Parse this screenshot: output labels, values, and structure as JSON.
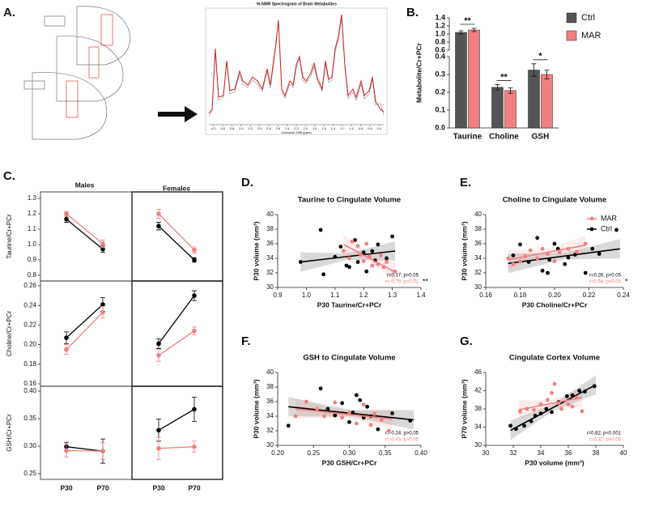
{
  "chart_data": [
    {
      "type": "spectrum",
      "panel": "A.",
      "title": "¹H-NMR Spectrogram of Brain Metabolites",
      "xlabel": "Chemical Shift (ppm)",
      "xlim": [
        4.1,
        0.3
      ],
      "xticks": [
        {
          "value": 4,
          "label": "4.0"
        },
        3.8,
        3.6,
        3.4,
        3.2,
        {
          "value": 3,
          "label": "3.0"
        },
        2.8,
        2.6,
        2.4,
        2.2,
        {
          "value": 2,
          "label": "2.0"
        },
        1.8,
        1.6,
        1.4,
        1.2,
        {
          "value": 1,
          "label": "1.0"
        },
        0.8,
        0.6,
        0.4
      ]
    },
    {
      "type": "bar",
      "panel": "B.",
      "ylabel": "Metabolite/Cr+PCr",
      "categories": [
        "Taurine",
        "Choline",
        "GSH"
      ],
      "series": [
        {
          "name": "Ctrl",
          "color": "#555555",
          "values": [
            1.04,
            0.228,
            0.325
          ],
          "errors": [
            0.04,
            0.015,
            0.035
          ]
        },
        {
          "name": "MAR",
          "color": "#f08080",
          "values": [
            1.1,
            0.21,
            0.3
          ],
          "errors": [
            0.04,
            0.015,
            0.025
          ]
        }
      ],
      "annotations": [
        "**",
        "**",
        "*"
      ],
      "ylim": [
        0,
        1.4
      ],
      "ybreak": [
        0.4,
        0.6
      ],
      "yticks": [
        {
          "value": 0,
          "label": "0.0"
        },
        0.1,
        0.2,
        0.3,
        0.4,
        0.6,
        0.8,
        {
          "value": 1,
          "label": "1.0"
        },
        1.2,
        1.4
      ]
    },
    {
      "type": "interaction",
      "panel": "C.",
      "groups": [
        "Males",
        "Females"
      ],
      "ylabel": "Taurine/Cr+PCr",
      "ylim": [
        0.8,
        1.3
      ],
      "yticks": [
        0.8,
        0.9,
        {
          "value": 1,
          "label": "1.0"
        },
        1.1,
        1.2,
        1.3
      ],
      "series": [
        {
          "color": "#000000",
          "values": [
            [
              1.165,
              0.97
            ],
            [
              1.12,
              0.9
            ]
          ],
          "errors": [
            [
              0.02,
              0.02
            ],
            [
              0.025,
              0.015
            ]
          ]
        },
        {
          "color": "#f08080",
          "values": [
            [
              1.2,
              1.005
            ],
            [
              1.2,
              0.965
            ]
          ],
          "errors": [
            [
              0.015,
              0.025
            ],
            [
              0.03,
              0.02
            ]
          ]
        }
      ]
    },
    {
      "type": "interaction",
      "ylabel": "Choline/Cr+PCr",
      "ylim": [
        0.16,
        0.26
      ],
      "yticks": [
        0.16,
        0.18,
        {
          "value": 0.2,
          "label": "0.20"
        },
        0.22,
        0.24,
        0.26
      ],
      "series": [
        {
          "color": "#000000",
          "values": [
            [
              0.207,
              0.241
            ],
            [
              0.201,
              0.25
            ]
          ],
          "errors": [
            [
              0.006,
              0.007
            ],
            [
              0.005,
              0.005
            ]
          ]
        },
        {
          "color": "#f08080",
          "values": [
            [
              0.195,
              0.233
            ],
            [
              0.189,
              0.214
            ]
          ],
          "errors": [
            [
              0.005,
              0.006
            ],
            [
              0.006,
              0.004
            ]
          ]
        }
      ]
    },
    {
      "type": "interaction",
      "ylabel": "GSH/Cr+PCr",
      "categories": [
        "P30",
        "P70"
      ],
      "ylim": [
        0.25,
        0.4
      ],
      "yticks": [
        0.25,
        {
          "value": 0.3,
          "label": "0.30"
        },
        0.35,
        {
          "value": 0.4,
          "label": "0.40"
        }
      ],
      "series": [
        {
          "color": "#000000",
          "values": [
            [
              0.299,
              0.291
            ],
            [
              0.329,
              0.367
            ]
          ],
          "errors": [
            [
              0.008,
              0.022
            ],
            [
              0.02,
              0.022
            ]
          ]
        },
        {
          "color": "#f08080",
          "values": [
            [
              0.292,
              0.291
            ],
            [
              0.296,
              0.299
            ]
          ],
          "errors": [
            [
              0.012,
              0.015
            ],
            [
              0.02,
              0.01
            ]
          ]
        }
      ]
    },
    {
      "type": "scatter",
      "panel": "D.",
      "title": "Taurine to Cingulate Volume",
      "xlabel": "P30 Taurine/Cr+PCr",
      "ylabel": "P30 volume (mm³)",
      "xlim": [
        0.9,
        1.4
      ],
      "xticks": [
        0.9,
        {
          "value": 1,
          "label": "1.0"
        },
        1.1,
        1.2,
        1.3,
        1.4
      ],
      "ylim": [
        30,
        40
      ],
      "yticks": [
        30,
        32,
        34,
        36,
        38,
        40
      ],
      "annotation": "**",
      "series": [
        {
          "color": "#000000",
          "stat": "r=0.17; p>0.05",
          "x": [
            0.98,
            1.05,
            1.06,
            1.1,
            1.12,
            1.14,
            1.15,
            1.17,
            1.18,
            1.2,
            1.21,
            1.23,
            1.24,
            1.25,
            1.28,
            1.3
          ],
          "y": [
            33.5,
            37.9,
            31.8,
            34.2,
            35.6,
            33,
            32.8,
            36.5,
            33.5,
            34.8,
            32.2,
            35,
            33.7,
            35.9,
            34,
            37
          ],
          "fit_x": [
            0.98,
            1.31
          ],
          "fit_y": [
            33.5,
            35
          ]
        },
        {
          "color": "#f08080",
          "stat": "r=-0.75; p<0.01",
          "x": [
            1.13,
            1.15,
            1.16,
            1.18,
            1.19,
            1.2,
            1.21,
            1.22,
            1.23,
            1.25,
            1.26,
            1.27,
            1.28,
            1.31
          ],
          "y": [
            35,
            34,
            36.3,
            35.7,
            34.5,
            33.6,
            36,
            34.2,
            33,
            33.2,
            34.4,
            32.8,
            33.5,
            32.2
          ],
          "fit_x": [
            1.13,
            1.31
          ],
          "fit_y": [
            35.9,
            32.1
          ]
        }
      ]
    },
    {
      "type": "scatter",
      "panel": "E.",
      "title": "Choline to Cingulate Volume",
      "xlabel": "P30 Choline/Cr+PCr",
      "ylabel": "P30 volume (mm³)",
      "xlim": [
        0.16,
        0.24
      ],
      "xticks": [
        0.16,
        0.18,
        {
          "value": 0.2,
          "label": "0.20"
        },
        0.22,
        0.24
      ],
      "ylim": [
        30,
        40
      ],
      "yticks": [
        30,
        32,
        34,
        36,
        38,
        40
      ],
      "annotation": "*",
      "series": [
        {
          "name": "Ctrl",
          "color": "#000000",
          "stat": "r=0.26; p>0.05",
          "x": [
            0.176,
            0.18,
            0.185,
            0.19,
            0.193,
            0.196,
            0.197,
            0.2,
            0.202,
            0.206,
            0.208,
            0.212,
            0.218,
            0.222,
            0.226,
            0.236
          ],
          "y": [
            34.4,
            35.9,
            33.5,
            36.8,
            32.3,
            32,
            33.8,
            36,
            35.3,
            33.2,
            34.1,
            34.5,
            32,
            35.3,
            34.6,
            37.9
          ],
          "fit_x": [
            0.173,
            0.238
          ],
          "fit_y": [
            33.3,
            35.3
          ]
        },
        {
          "name": "MAR",
          "color": "#f08080",
          "stat": "r=0.58; p<0.05",
          "x": [
            0.173,
            0.176,
            0.18,
            0.183,
            0.186,
            0.19,
            0.193,
            0.196,
            0.2,
            0.203,
            0.208,
            0.213,
            0.218
          ],
          "y": [
            34,
            33.2,
            33.6,
            34.3,
            35.1,
            34,
            35.3,
            34.6,
            33.6,
            34.8,
            35.3,
            34.9,
            36
          ],
          "fit_x": [
            0.173,
            0.218
          ],
          "fit_y": [
            33.8,
            35.8
          ]
        }
      ]
    },
    {
      "type": "scatter",
      "panel": "F.",
      "title": "GSH to Cingulate Volume",
      "xlabel": "P30 GSH/Cr+PCr",
      "ylabel": "P30 volume (mm³)",
      "xlim": [
        0.2,
        0.4
      ],
      "xticks": [
        {
          "value": 0.2,
          "label": "0.20"
        },
        0.25,
        {
          "value": 0.3,
          "label": "0.30"
        },
        0.35,
        {
          "value": 0.4,
          "label": "0.40"
        }
      ],
      "ylim": [
        30,
        40
      ],
      "yticks": [
        30,
        32,
        34,
        36,
        38,
        40
      ],
      "series": [
        {
          "color": "#000000",
          "stat": "r=-0.24; p>0.05",
          "x": [
            0.215,
            0.26,
            0.27,
            0.28,
            0.29,
            0.3,
            0.305,
            0.31,
            0.315,
            0.32,
            0.325,
            0.33,
            0.34,
            0.36,
            0.385
          ],
          "y": [
            32.7,
            37.8,
            35,
            34.1,
            35.8,
            33.2,
            34.5,
            36.9,
            36.2,
            33.8,
            35.3,
            34,
            32.2,
            34.4,
            33.4
          ],
          "fit_x": [
            0.215,
            0.39
          ],
          "fit_y": [
            35.3,
            33.5
          ]
        },
        {
          "color": "#f08080",
          "stat": "r=-0.43; p>0.05",
          "x": [
            0.225,
            0.24,
            0.255,
            0.265,
            0.28,
            0.29,
            0.3,
            0.31,
            0.32,
            0.33,
            0.335,
            0.345,
            0.355
          ],
          "y": [
            34,
            36,
            35,
            34,
            35.9,
            33.8,
            34.5,
            33,
            35.6,
            32.8,
            34.3,
            33.5,
            32
          ],
          "fit_x": [
            0.225,
            0.36
          ],
          "fit_y": [
            35,
            33.6
          ]
        }
      ]
    },
    {
      "type": "scatter",
      "panel": "G.",
      "title": "Cingulate Cortex Volume",
      "xlabel": "P30 volume (mm³)",
      "ylabel": "P70 volume (mm³)",
      "xlim": [
        30,
        40
      ],
      "xticks": [
        30,
        32,
        34,
        36,
        38,
        40
      ],
      "ylim": [
        30,
        46
      ],
      "yticks": [
        30,
        34,
        38,
        42,
        46
      ],
      "series": [
        {
          "color": "#000000",
          "stat": "r=0.82; p<0.001",
          "x": [
            31.8,
            32.2,
            32.8,
            33.3,
            33.6,
            34,
            34.4,
            34.8,
            35.3,
            35.9,
            36.3,
            36.8,
            37.2,
            37.9
          ],
          "y": [
            34.3,
            33.6,
            34.3,
            35.3,
            36.5,
            37,
            38,
            37.3,
            39.5,
            40.8,
            41,
            42,
            41.8,
            43
          ],
          "fit_x": [
            31.8,
            38
          ],
          "fit_y": [
            33.3,
            43.3
          ]
        },
        {
          "color": "#f08080",
          "stat": "r=0.32; p>0.05",
          "x": [
            32.5,
            33,
            33.5,
            34,
            34.5,
            34.8,
            35,
            35.3,
            35.5,
            36,
            36.3,
            36.6,
            37
          ],
          "y": [
            37.4,
            38,
            37.8,
            39,
            40,
            41.5,
            43.5,
            39.3,
            38,
            39,
            38.5,
            40.5,
            37.5
          ],
          "fit_x": [
            32.4,
            37
          ],
          "fit_y": [
            37.8,
            40.5
          ]
        }
      ]
    }
  ]
}
